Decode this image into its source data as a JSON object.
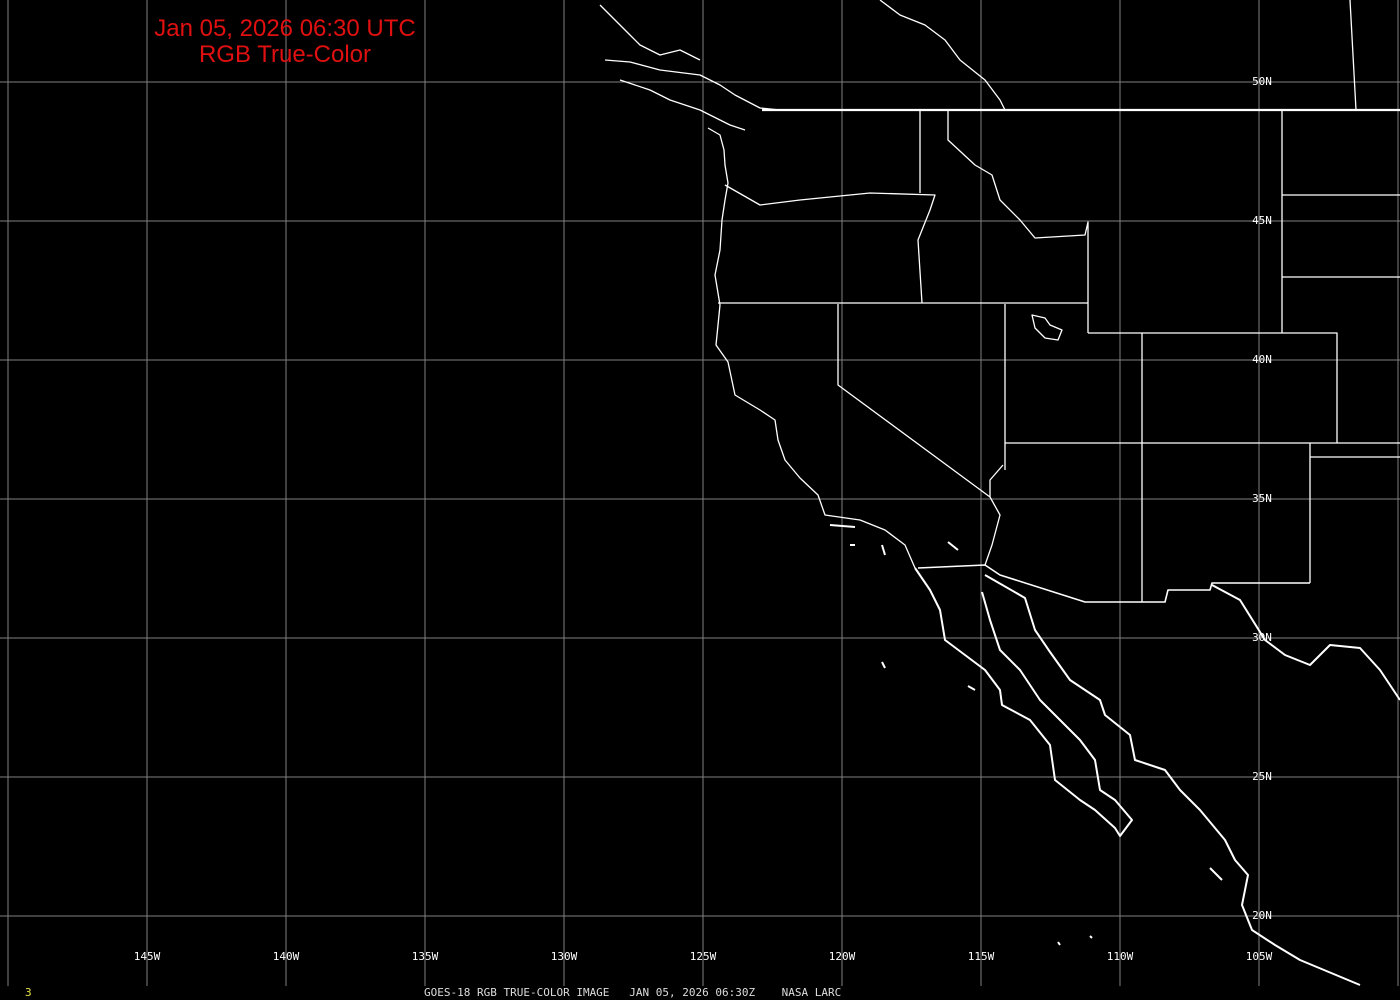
{
  "map": {
    "title_line1": "Jan 05, 2026 06:30 UTC",
    "title_line2": "RGB True-Color",
    "title_color": "#e01010",
    "longitude_labels": [
      "145W",
      "140W",
      "135W",
      "130W",
      "125W",
      "120W",
      "115W",
      "110W",
      "105W"
    ],
    "latitude_labels": [
      "50N",
      "45N",
      "40N",
      "35N",
      "30N",
      "25N",
      "20N"
    ],
    "footer": {
      "frame_number": "3",
      "caption": "GOES-18 RGB TRUE-COLOR IMAGE   JAN 05, 2026 06:30Z    NASA LARC"
    },
    "grid_color": "#808080",
    "outline_color": "#ffffff",
    "background_color": "#000000"
  }
}
